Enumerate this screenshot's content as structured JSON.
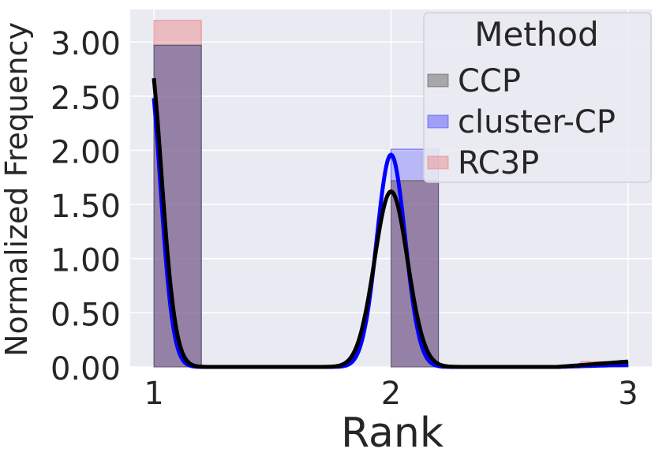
{
  "chart_data": {
    "type": "bar",
    "xlabel": "Rank",
    "ylabel": "Normalized Frequency",
    "x_ticks": [
      1,
      2,
      3
    ],
    "x_tick_labels": [
      "1",
      "2",
      "3"
    ],
    "y_ticks": [
      0.0,
      0.5,
      1.0,
      1.5,
      2.0,
      2.5,
      3.0
    ],
    "y_tick_labels": [
      "0.00",
      "0.50",
      "1.00",
      "1.50",
      "2.00",
      "2.50",
      "3.00"
    ],
    "xlim": [
      0.9,
      3.1
    ],
    "ylim": [
      0,
      3.3
    ],
    "grid": true,
    "legend": {
      "title": "Method",
      "placement": "top-right"
    },
    "bin_width": 0.2,
    "series": [
      {
        "name": "CCP",
        "color": "#555555",
        "bins": [
          {
            "x": 1.0,
            "height": 2.97
          },
          {
            "x": 2.0,
            "height": 1.72
          },
          {
            "x": 2.8,
            "height": 0.02
          }
        ],
        "kde": {
          "peak1_height": 3.02,
          "peak1_sd": 0.06,
          "peak2_center": 2.0,
          "peak2_height": 1.62,
          "peak2_sd": 0.07,
          "tail_height": 0.05
        }
      },
      {
        "name": "cluster-CP",
        "color": "#4444ff",
        "bins": [
          {
            "x": 1.0,
            "height": 2.97
          },
          {
            "x": 2.0,
            "height": 2.01
          },
          {
            "x": 2.8,
            "height": 0.02
          }
        ],
        "kde": {
          "peak1_height": 2.88,
          "peak1_sd": 0.055,
          "peak2_center": 2.0,
          "peak2_height": 1.96,
          "peak2_sd": 0.06,
          "tail_height": 0.02
        }
      },
      {
        "name": "RC3P",
        "color": "#e88080",
        "bins": [
          {
            "x": 1.0,
            "height": 3.2
          },
          {
            "x": 2.0,
            "height": 1.72
          },
          {
            "x": 2.8,
            "height": 0.05
          }
        ],
        "kde": null
      }
    ]
  }
}
